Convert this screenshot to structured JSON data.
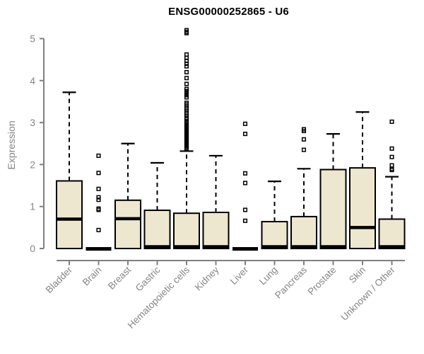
{
  "chart_data": {
    "type": "boxplot",
    "title": "ENSG00000252865 - U6",
    "ylabel": "Expression",
    "xlabel": "",
    "ylim": [
      0,
      5
    ],
    "yticks": [
      0,
      1,
      2,
      3,
      4,
      5
    ],
    "grid": false,
    "legend": false,
    "categories": [
      "Bladder",
      "Brain",
      "Breast",
      "Gastric",
      "Hematopoietic cells",
      "Kidney",
      "Liver",
      "Lung",
      "Pancreas",
      "Prostate",
      "Skin",
      "Unknown / Other"
    ],
    "series": [
      {
        "name": "Bladder",
        "q1": 0,
        "median": 0.7,
        "q3": 1.61,
        "whisker_low": 0,
        "whisker_high": 3.72,
        "outliers": []
      },
      {
        "name": "Brain",
        "q1": 0,
        "median": 0,
        "q3": 0,
        "whisker_low": 0,
        "whisker_high": 0,
        "outliers": [
          0.44,
          0.92,
          0.95,
          1.16,
          1.22,
          1.42,
          1.8,
          2.21
        ]
      },
      {
        "name": "Breast",
        "q1": 0,
        "median": 0.71,
        "q3": 1.15,
        "whisker_low": 0,
        "whisker_high": 2.5,
        "outliers": []
      },
      {
        "name": "Gastric",
        "q1": 0,
        "median": 0,
        "q3": 0.91,
        "whisker_low": 0,
        "whisker_high": 2.04,
        "outliers": []
      },
      {
        "name": "Hematopoietic cells",
        "q1": 0,
        "median": 0,
        "q3": 0.84,
        "whisker_low": 0,
        "whisker_high": 2.32,
        "outliers": [
          2.38,
          2.41,
          2.44,
          2.47,
          2.5,
          2.53,
          2.56,
          2.59,
          2.62,
          2.65,
          2.68,
          2.71,
          2.74,
          2.77,
          2.8,
          2.83,
          2.86,
          2.89,
          2.92,
          2.95,
          2.98,
          3.02,
          3.08,
          3.11,
          3.15,
          3.19,
          3.23,
          3.27,
          3.31,
          3.35,
          3.39,
          3.43,
          3.47,
          3.6,
          3.65,
          3.7,
          3.75,
          3.8,
          3.92,
          4.06,
          4.2,
          4.34,
          4.4,
          4.47,
          4.54,
          4.62,
          5.13,
          5.16,
          5.2
        ]
      },
      {
        "name": "Kidney",
        "q1": 0,
        "median": 0,
        "q3": 0.86,
        "whisker_low": 0,
        "whisker_high": 2.21,
        "outliers": []
      },
      {
        "name": "Liver",
        "q1": 0,
        "median": 0,
        "q3": 0,
        "whisker_low": 0,
        "whisker_high": 0,
        "outliers": [
          0.66,
          0.92,
          1.56,
          1.79,
          2.73,
          2.97
        ]
      },
      {
        "name": "Lung",
        "q1": 0,
        "median": 0,
        "q3": 0.64,
        "whisker_low": 0,
        "whisker_high": 1.6,
        "outliers": []
      },
      {
        "name": "Pancreas",
        "q1": 0,
        "median": 0,
        "q3": 0.76,
        "whisker_low": 0,
        "whisker_high": 1.9,
        "outliers": [
          2.35,
          2.6,
          2.8,
          2.84
        ]
      },
      {
        "name": "Prostate",
        "q1": 0,
        "median": 0,
        "q3": 1.88,
        "whisker_low": 0,
        "whisker_high": 2.73,
        "outliers": []
      },
      {
        "name": "Skin",
        "q1": 0,
        "median": 0.5,
        "q3": 1.92,
        "whisker_low": 0,
        "whisker_high": 3.25,
        "outliers": []
      },
      {
        "name": "Unknown / Other",
        "q1": 0,
        "median": 0,
        "q3": 0.7,
        "whisker_low": 0,
        "whisker_high": 1.71,
        "outliers": [
          1.87,
          1.9,
          1.98,
          2.18,
          2.38,
          3.02
        ]
      }
    ],
    "colors": {
      "box_fill": "#EDE7CF",
      "box_stroke": "#000000",
      "median": "#000000",
      "whisker": "#000000",
      "outlier": "#000000",
      "axis": "#808080",
      "tick_text": "#858585",
      "title_text": "#000000",
      "background": "#ffffff"
    }
  }
}
